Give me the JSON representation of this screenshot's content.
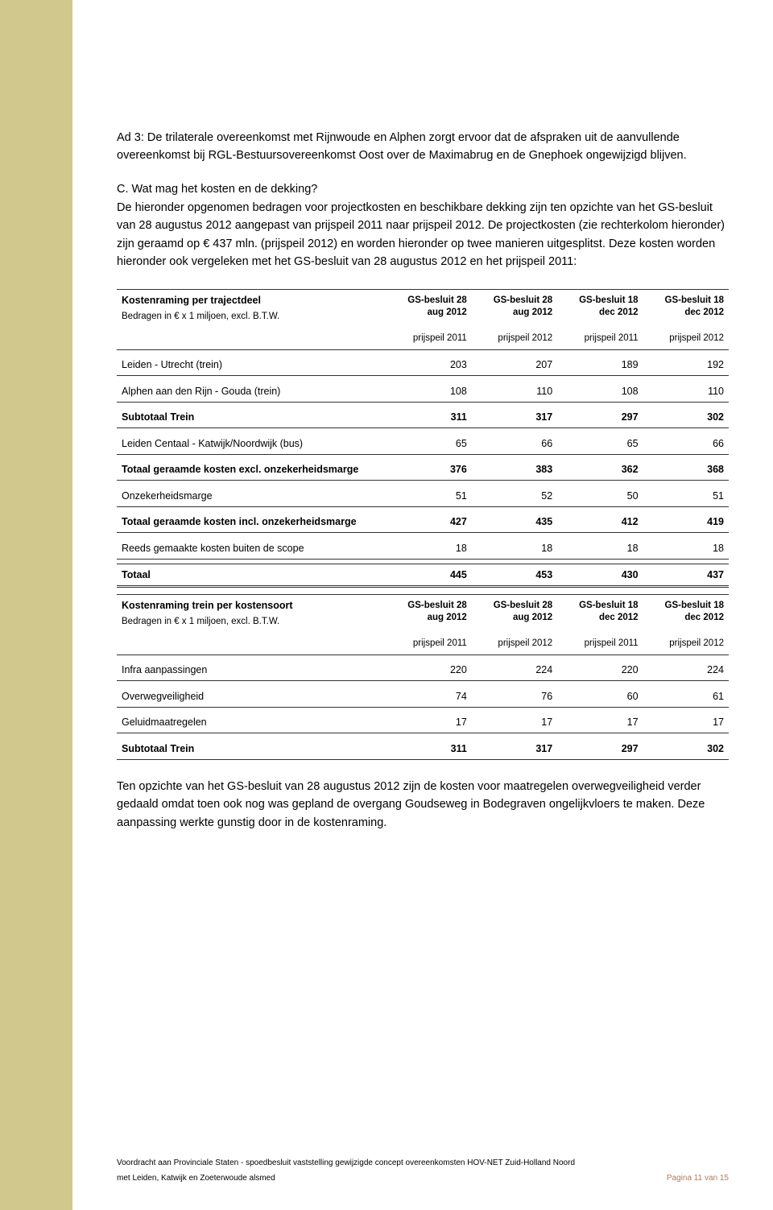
{
  "intro_para": "Ad 3: De trilaterale overeenkomst met Rijnwoude en Alphen zorgt ervoor dat de afspraken uit de aanvullende overeenkomst bij RGL-Bestuursovereenkomst Oost over de Maximabrug en de Gnephoek ongewijzigd blijven.",
  "section_heading": "C. Wat mag het kosten en de dekking?",
  "section_body": "De hieronder opgenomen bedragen voor projectkosten en beschikbare dekking zijn ten opzichte van het GS-besluit van 28 augustus 2012 aangepast van prijspeil 2011 naar prijspeil 2012. De projectkosten (zie rechterkolom hieronder) zijn geraamd op € 437 mln. (prijspeil 2012) en worden hieronder op twee manieren uitgesplitst. Deze kosten worden hieronder ook vergeleken met het GS-besluit van 28 augustus 2012 en het prijspeil 2011:",
  "table1": {
    "title": "Kostenraming per trajectdeel",
    "amounts_line": "Bedragen in € x 1 miljoen, excl. B.T.W.",
    "col_headers_top": [
      "GS-besluit 28 aug 2012",
      "GS-besluit 28 aug 2012",
      "GS-besluit 18 dec 2012",
      "GS-besluit 18 dec 2012"
    ],
    "col_headers_bottom": [
      "prijspeil 2011",
      "prijspeil 2012",
      "prijspeil 2011",
      "prijspeil 2012"
    ],
    "rows": [
      {
        "label": "Leiden - Utrecht (trein)",
        "vals": [
          203,
          207,
          189,
          192
        ],
        "bold": false
      },
      {
        "label": "Alphen aan den Rijn - Gouda (trein)",
        "vals": [
          108,
          110,
          108,
          110
        ],
        "bold": false
      },
      {
        "label": "Subtotaal Trein",
        "vals": [
          311,
          317,
          297,
          302
        ],
        "bold": true
      },
      {
        "label": "Leiden Centaal - Katwijk/Noordwijk (bus)",
        "vals": [
          65,
          66,
          65,
          66
        ],
        "bold": false
      },
      {
        "label": "Totaal geraamde kosten excl. onzekerheidsmarge",
        "vals": [
          376,
          383,
          362,
          368
        ],
        "bold": true
      },
      {
        "label": "Onzekerheidsmarge",
        "vals": [
          51,
          52,
          50,
          51
        ],
        "bold": false
      },
      {
        "label": "Totaal geraamde kosten incl. onzekerheidsmarge",
        "vals": [
          427,
          435,
          412,
          419
        ],
        "bold": true
      },
      {
        "label": "Reeds gemaakte kosten buiten de scope",
        "vals": [
          18,
          18,
          18,
          18
        ],
        "bold": false
      },
      {
        "label": "Totaal",
        "vals": [
          445,
          453,
          430,
          437
        ],
        "bold": true,
        "dbl": true
      }
    ]
  },
  "table2": {
    "title": "Kostenraming trein per kostensoort",
    "amounts_line": "Bedragen in € x 1 miljoen, excl. B.T.W.",
    "col_headers_top": [
      "GS-besluit 28 aug 2012",
      "GS-besluit 28 aug 2012",
      "GS-besluit 18 dec 2012",
      "GS-besluit 18 dec 2012"
    ],
    "col_headers_bottom": [
      "prijspeil 2011",
      "prijspeil 2012",
      "prijspeil 2011",
      "prijspeil 2012"
    ],
    "rows": [
      {
        "label": "Infra aanpassingen",
        "vals": [
          220,
          224,
          220,
          224
        ],
        "bold": false
      },
      {
        "label": "Overwegveiligheid",
        "vals": [
          74,
          76,
          60,
          61
        ],
        "bold": false
      },
      {
        "label": "Geluidmaatregelen",
        "vals": [
          17,
          17,
          17,
          17
        ],
        "bold": false
      },
      {
        "label": "Subtotaal Trein",
        "vals": [
          311,
          317,
          297,
          302
        ],
        "bold": true
      }
    ]
  },
  "closing_para": "Ten opzichte van het GS-besluit van 28 augustus 2012 zijn de kosten voor maatregelen overwegveiligheid verder gedaald omdat toen ook nog was gepland de overgang Goudseweg in Bodegraven ongelijkvloers te maken. Deze aanpassing werkte gunstig door in de kostenraming.",
  "footer": {
    "line1": "Voordracht aan Provinciale Staten - spoedbesluit vaststelling gewijzigde concept overeenkomsten HOV-NET Zuid-Holland Noord",
    "line2_left": "met Leiden, Katwijk en Zoeterwoude alsmed",
    "line2_right": "Pagina 11 van 15"
  },
  "colors": {
    "sidebar": "#d0c88c",
    "text": "#000000",
    "rule": "#333333",
    "footer_right": "#b37a5a"
  }
}
